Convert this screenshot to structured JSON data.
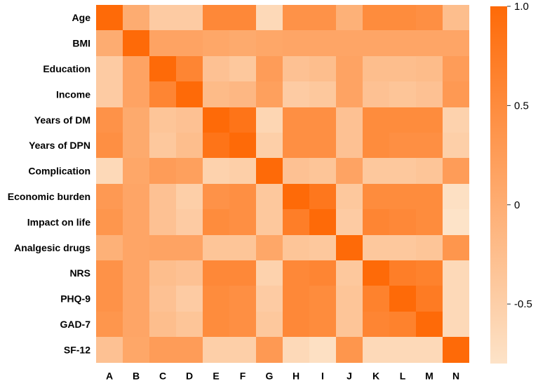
{
  "chart_data": {
    "type": "heatmap",
    "title": "",
    "rows": [
      "Age",
      "BMI",
      "Education",
      "Income",
      "Years of DM",
      "Years of DPN",
      "Complication",
      "Economic burden",
      "Impact on life",
      "Analgesic drugs",
      "NRS",
      "PHQ-9",
      "GAD-7",
      "SF-12"
    ],
    "columns": [
      "A",
      "B",
      "C",
      "D",
      "E",
      "F",
      "G",
      "H",
      "I",
      "J",
      "K",
      "L",
      "M",
      "N"
    ],
    "values": [
      [
        1.0,
        0.02,
        -0.45,
        -0.45,
        0.55,
        0.55,
        -0.65,
        0.4,
        0.4,
        -0.05,
        0.5,
        0.5,
        0.45,
        -0.25
      ],
      [
        0.02,
        1.0,
        0.15,
        0.15,
        0.1,
        0.05,
        0.1,
        0.12,
        0.12,
        0.12,
        0.12,
        0.12,
        0.12,
        0.12
      ],
      [
        -0.45,
        0.15,
        1.0,
        0.6,
        -0.3,
        -0.4,
        0.25,
        -0.3,
        -0.25,
        0.15,
        -0.25,
        -0.25,
        -0.22,
        0.25
      ],
      [
        -0.45,
        0.15,
        0.6,
        1.0,
        -0.2,
        -0.15,
        0.2,
        -0.45,
        -0.4,
        0.15,
        -0.3,
        -0.35,
        -0.3,
        0.3
      ],
      [
        0.4,
        0.05,
        -0.35,
        -0.3,
        1.0,
        0.85,
        -0.6,
        0.45,
        0.45,
        -0.3,
        0.5,
        0.5,
        0.5,
        -0.55
      ],
      [
        0.45,
        0.05,
        -0.4,
        -0.25,
        0.85,
        1.0,
        -0.5,
        0.45,
        0.45,
        -0.3,
        0.5,
        0.45,
        0.45,
        -0.5
      ],
      [
        -0.65,
        0.1,
        0.25,
        0.2,
        -0.55,
        -0.5,
        1.0,
        -0.3,
        -0.35,
        0.15,
        -0.4,
        -0.4,
        -0.35,
        0.25
      ],
      [
        0.3,
        0.12,
        -0.3,
        -0.5,
        0.4,
        0.45,
        -0.4,
        1.0,
        0.8,
        -0.4,
        0.5,
        0.5,
        0.5,
        -0.75
      ],
      [
        0.35,
        0.12,
        -0.3,
        -0.45,
        0.5,
        0.45,
        -0.4,
        0.7,
        1.0,
        -0.45,
        0.6,
        0.55,
        0.5,
        -0.8
      ],
      [
        -0.05,
        0.12,
        0.15,
        0.15,
        -0.35,
        -0.35,
        0.1,
        -0.35,
        -0.4,
        1.0,
        -0.4,
        -0.4,
        -0.35,
        0.35
      ],
      [
        0.4,
        0.12,
        -0.25,
        -0.3,
        0.55,
        0.55,
        -0.55,
        0.55,
        0.6,
        -0.4,
        1.0,
        0.7,
        0.65,
        -0.65
      ],
      [
        0.4,
        0.12,
        -0.3,
        -0.45,
        0.5,
        0.45,
        -0.45,
        0.55,
        0.5,
        -0.35,
        0.65,
        1.0,
        0.75,
        -0.65
      ],
      [
        0.35,
        0.12,
        -0.25,
        -0.35,
        0.5,
        0.45,
        -0.4,
        0.55,
        0.5,
        -0.35,
        0.6,
        0.65,
        1.0,
        -0.65
      ],
      [
        -0.3,
        0.1,
        0.25,
        0.25,
        -0.5,
        -0.5,
        0.3,
        -0.65,
        -0.75,
        0.35,
        -0.65,
        -0.65,
        -0.65,
        1.0
      ]
    ],
    "colorbar": {
      "range": [
        -0.8,
        1.0
      ],
      "ticks": [
        1.0,
        0.5,
        0,
        -0.5
      ],
      "tick_labels": [
        "1.0",
        "0.5",
        "0",
        "-0.5"
      ],
      "color_low": "#fde3c8",
      "color_high": "#fe6a08"
    },
    "grid": false
  }
}
